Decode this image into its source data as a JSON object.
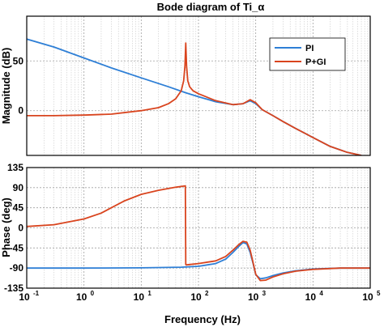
{
  "chart_data": [
    {
      "type": "line",
      "panel": "magnitude",
      "title": "Bode diagram of Ti_α",
      "xlabel": "",
      "ylabel": "Magnitude (dB)",
      "xscale": "log",
      "xlim": [
        0.1,
        100000
      ],
      "ylim": [
        -45,
        95
      ],
      "grid": true,
      "legend_position": "top-right",
      "y_ticks": [
        "0",
        "50"
      ],
      "series": [
        {
          "name": "PI",
          "color": "#2e7fd6",
          "x": [
            0.1,
            0.3,
            1,
            3,
            10,
            30,
            60,
            100,
            200,
            400,
            600,
            800,
            1000,
            1300,
            2000,
            3000,
            5000,
            10000,
            20000,
            40000,
            70000
          ],
          "y": [
            72,
            64,
            53,
            43,
            33,
            24,
            18,
            14,
            9,
            6,
            7,
            10,
            7,
            1,
            -5,
            -11,
            -18,
            -27,
            -36,
            -42,
            -45
          ]
        },
        {
          "name": "P+GI",
          "color": "#d9441e",
          "x": [
            0.1,
            0.3,
            1,
            3,
            10,
            20,
            30,
            40,
            50,
            55,
            58,
            60,
            62,
            65,
            70,
            80,
            100,
            200,
            400,
            600,
            800,
            1000,
            1300,
            2000,
            3000,
            5000,
            10000,
            20000,
            40000,
            70000
          ],
          "y": [
            -5,
            -5,
            -4.5,
            -3.5,
            0,
            3,
            7,
            12,
            20,
            30,
            45,
            68,
            45,
            30,
            24,
            20,
            17,
            10,
            6,
            7,
            11,
            8,
            1,
            -5,
            -11,
            -18,
            -27,
            -36,
            -42,
            -45
          ]
        }
      ]
    },
    {
      "type": "line",
      "panel": "phase",
      "title": "",
      "xlabel": "Frequency (Hz)",
      "ylabel": "Phase (deg)",
      "xscale": "log",
      "xlim": [
        0.1,
        100000
      ],
      "ylim": [
        -135,
        135
      ],
      "grid": true,
      "y_ticks": [
        "135",
        "90",
        "45",
        "0",
        "-45",
        "-90",
        "-135"
      ],
      "x_ticks": [
        {
          "base": "10",
          "exp": "-1"
        },
        {
          "base": "10",
          "exp": "0"
        },
        {
          "base": "10",
          "exp": "1"
        },
        {
          "base": "10",
          "exp": "2"
        },
        {
          "base": "10",
          "exp": "3"
        },
        {
          "base": "10",
          "exp": "4"
        },
        {
          "base": "10",
          "exp": "5"
        }
      ],
      "series": [
        {
          "name": "PI",
          "color": "#2e7fd6",
          "x": [
            0.1,
            1,
            10,
            50,
            100,
            200,
            300,
            400,
            500,
            600,
            700,
            800,
            900,
            1000,
            1200,
            1500,
            2000,
            3000,
            5000,
            10000,
            30000,
            100000
          ],
          "y": [
            -90,
            -90,
            -89.5,
            -88,
            -86,
            -80,
            -70,
            -55,
            -42,
            -33,
            -36,
            -55,
            -80,
            -105,
            -114,
            -112,
            -107,
            -101,
            -96,
            -92,
            -90,
            -90
          ]
        },
        {
          "name": "P+GI",
          "color": "#d9441e",
          "x": [
            0.1,
            0.3,
            1,
            2,
            3,
            5,
            10,
            20,
            40,
            59,
            60,
            61,
            70,
            100,
            200,
            300,
            400,
            500,
            600,
            700,
            800,
            900,
            1000,
            1200,
            1500,
            2000,
            3000,
            5000,
            10000,
            30000,
            100000
          ],
          "y": [
            3,
            7,
            20,
            33,
            45,
            60,
            75,
            84,
            91,
            94,
            -82,
            -83,
            -82,
            -80,
            -74,
            -64,
            -50,
            -38,
            -30,
            -32,
            -50,
            -78,
            -104,
            -118,
            -117,
            -110,
            -103,
            -97,
            -93,
            -90,
            -90
          ]
        }
      ]
    }
  ]
}
